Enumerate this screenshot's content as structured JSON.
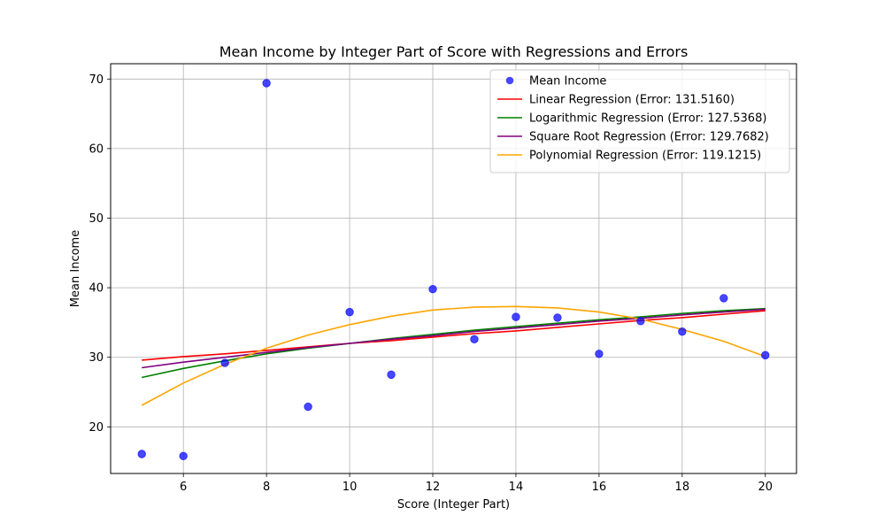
{
  "chart_data": {
    "type": "scatter",
    "title": "Mean Income by Integer Part of Score with Regressions and Errors",
    "xlabel": "Score (Integer Part)",
    "ylabel": "Mean Income",
    "xlim": [
      4.25,
      20.75
    ],
    "ylim": [
      13.3,
      72.2
    ],
    "x_ticks": [
      6,
      8,
      10,
      12,
      14,
      16,
      18,
      20
    ],
    "y_ticks": [
      20,
      30,
      40,
      50,
      60,
      70
    ],
    "grid": true,
    "legend_position": "top-right",
    "x": [
      5,
      6,
      7,
      8,
      9,
      10,
      11,
      12,
      13,
      14,
      15,
      16,
      17,
      18,
      19,
      20
    ],
    "series": [
      {
        "name": "Mean Income",
        "kind": "scatter",
        "color": "#0000ff",
        "values": [
          16.1,
          15.8,
          29.2,
          69.4,
          22.9,
          36.5,
          27.5,
          39.8,
          32.6,
          35.8,
          35.7,
          30.5,
          35.2,
          33.7,
          38.5,
          30.3
        ]
      },
      {
        "name": "Linear Regression (Error: 131.5160)",
        "kind": "line",
        "color": "#ff0000",
        "values": [
          29.6,
          30.1,
          30.5,
          31.0,
          31.5,
          32.0,
          32.4,
          32.9,
          33.4,
          33.8,
          34.3,
          34.8,
          35.3,
          35.7,
          36.2,
          36.7
        ]
      },
      {
        "name": "Logarithmic Regression (Error: 127.5368)",
        "kind": "line",
        "color": "#008000",
        "values": [
          27.1,
          28.4,
          29.5,
          30.5,
          31.3,
          32.0,
          32.7,
          33.3,
          33.9,
          34.4,
          34.9,
          35.4,
          35.8,
          36.3,
          36.7,
          37.0
        ]
      },
      {
        "name": "Square Root Regression (Error: 129.7682)",
        "kind": "line",
        "color": "#800080",
        "values": [
          28.5,
          29.3,
          30.0,
          30.7,
          31.4,
          32.0,
          32.6,
          33.1,
          33.7,
          34.2,
          34.7,
          35.2,
          35.6,
          36.1,
          36.5,
          36.9
        ]
      },
      {
        "name": "Polynomial Regression (Error: 119.1215)",
        "kind": "line",
        "color": "#ffa500",
        "values": [
          23.1,
          26.3,
          29.0,
          31.3,
          33.2,
          34.7,
          35.9,
          36.8,
          37.2,
          37.3,
          37.1,
          36.5,
          35.5,
          34.0,
          32.3,
          30.1
        ]
      }
    ]
  }
}
